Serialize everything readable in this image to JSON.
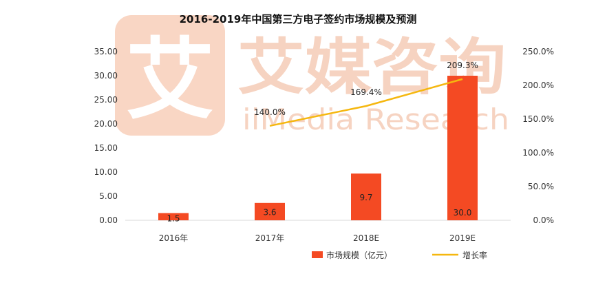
{
  "watermark": {
    "logo_char": "艾",
    "brand_cn": "艾媒咨询",
    "brand_en": "iiMedia Research",
    "color": "#f6d3c1"
  },
  "chart_data": {
    "type": "bar",
    "title": "2016-2019年中国第三方电子签约市场规模及预测",
    "categories": [
      "2016年",
      "2017年",
      "2018E",
      "2019E"
    ],
    "series": [
      {
        "name": "市场规模（亿元）",
        "kind": "bar",
        "axis": "left",
        "color": "#f44a23",
        "values": [
          1.5,
          3.6,
          9.7,
          30.0
        ],
        "labels": [
          "1.5",
          "3.6",
          "9.7",
          "30.0"
        ]
      },
      {
        "name": "增长率",
        "kind": "line",
        "axis": "right",
        "color": "#f5b70f",
        "values": [
          null,
          140.0,
          169.4,
          209.3
        ],
        "labels": [
          "",
          "140.0%",
          "169.4%",
          "209.3%"
        ]
      }
    ],
    "y_left": {
      "min": 0,
      "max": 35,
      "ticks": [
        0,
        5,
        10,
        15,
        20,
        25,
        30,
        35
      ],
      "tick_labels": [
        "0.00",
        "5.00",
        "10.00",
        "15.00",
        "20.00",
        "25.00",
        "30.00",
        "35.00"
      ]
    },
    "y_right": {
      "min": 0,
      "max": 250,
      "ticks": [
        0,
        50,
        100,
        150,
        200,
        250
      ],
      "tick_labels": [
        "0.0%",
        "50.0%",
        "100.0%",
        "150.0%",
        "200.0%",
        "250.0%"
      ]
    },
    "grid": false,
    "legend": "bottom"
  }
}
